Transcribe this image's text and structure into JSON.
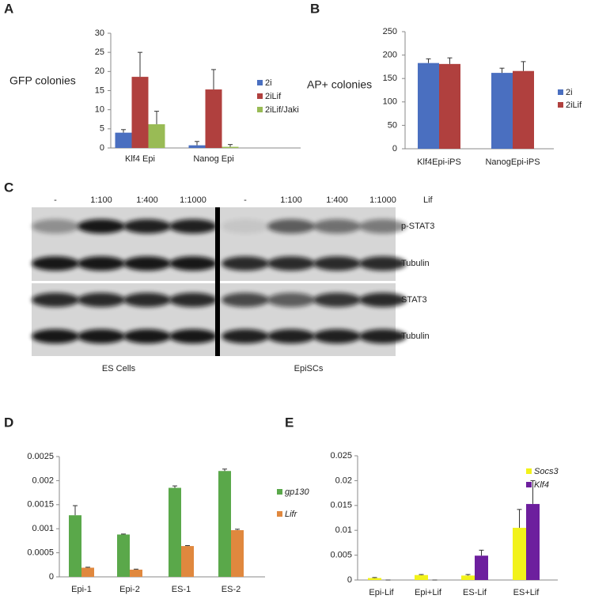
{
  "chart_data": [
    {
      "type": "bar",
      "label": "A",
      "ylabel": "GFP colonies",
      "categories": [
        "Klf4 Epi",
        "Nanog Epi"
      ],
      "series": [
        {
          "name": "2i",
          "color": "#4a6fc0",
          "values": [
            4,
            0.7
          ],
          "errors": [
            0.8,
            1.0
          ]
        },
        {
          "name": "2iLif",
          "color": "#b0403e",
          "values": [
            18.6,
            15.3
          ],
          "errors": [
            6.4,
            5.2
          ]
        },
        {
          "name": "2iLif/Jaki",
          "color": "#99bb55",
          "values": [
            6.2,
            0.3
          ],
          "errors": [
            3.4,
            0.6
          ]
        }
      ],
      "ylim": [
        0,
        30
      ],
      "yticks": [
        0,
        5,
        10,
        15,
        20,
        25,
        30
      ]
    },
    {
      "type": "bar",
      "label": "B",
      "ylabel": "AP+ colonies",
      "categories": [
        "Klf4Epi-iPS",
        "NanogEpi-iPS"
      ],
      "series": [
        {
          "name": "2i",
          "color": "#4a6fc0",
          "values": [
            183,
            162
          ],
          "errors": [
            9,
            10
          ]
        },
        {
          "name": "2iLif",
          "color": "#b0403e",
          "values": [
            181,
            166
          ],
          "errors": [
            13,
            20
          ]
        }
      ],
      "ylim": [
        0,
        250
      ],
      "yticks": [
        0,
        50,
        100,
        150,
        200,
        250
      ]
    },
    {
      "type": "bar",
      "label": "D",
      "categories": [
        "Epi-1",
        "Epi-2",
        "ES-1",
        "ES-2"
      ],
      "series": [
        {
          "name": "gp130",
          "color": "#5aa84a",
          "values": [
            0.00128,
            0.00088,
            0.00185,
            0.0022
          ],
          "errors": [
            0.0002,
            1e-05,
            4e-05,
            4e-05
          ]
        },
        {
          "name": "Lifr",
          "color": "#e0883e",
          "values": [
            0.00019,
            0.00015,
            0.00064,
            0.00097
          ],
          "errors": [
            1e-05,
            1e-05,
            1e-05,
            2e-05
          ]
        }
      ],
      "ylim": [
        0,
        0.0025
      ],
      "yticks": [
        0,
        0.0005,
        0.001,
        0.0015,
        0.002,
        0.0025
      ]
    },
    {
      "type": "bar",
      "label": "E",
      "categories": [
        "Epi-Lif",
        "Epi+Lif",
        "ES-Lif",
        "ES+Lif"
      ],
      "series": [
        {
          "name": "Socs3",
          "color": "#f2f21a",
          "values": [
            0.0004,
            0.001,
            0.0009,
            0.0105
          ],
          "errors": [
            0.0001,
            0.0001,
            0.0002,
            0.0037
          ]
        },
        {
          "name": "Klf4",
          "color": "#6d1f9e",
          "values": [
            0,
            0,
            0.0049,
            0.0153
          ],
          "errors": [
            0,
            0,
            0.0011,
            0.0047
          ]
        }
      ],
      "ylim": [
        0,
        0.025
      ],
      "yticks": [
        0,
        0.005,
        0.01,
        0.015,
        0.02,
        0.025
      ]
    }
  ],
  "blot": {
    "label": "C",
    "lanes": [
      "-",
      "1:100",
      "1:400",
      "1:1000",
      "-",
      "1:100",
      "1:400",
      "1:1000"
    ],
    "treatment": "Lif",
    "rows": [
      "p-STAT3",
      "Tubulin",
      "STAT3",
      "Tubulin"
    ],
    "groups": [
      "ES Cells",
      "EpiSCs"
    ]
  }
}
